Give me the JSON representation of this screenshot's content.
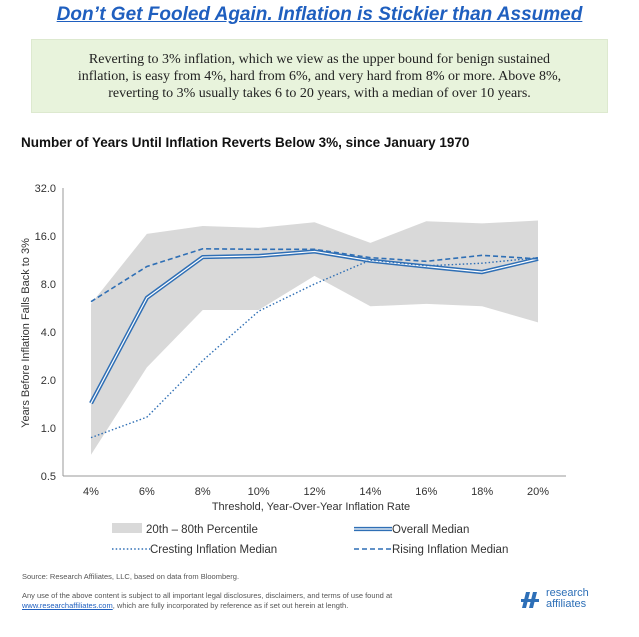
{
  "headline": "Don’t Get Fooled Again. Inflation is Stickier than Assumed",
  "callout": {
    "line1": "Reverting to 3% inflation, which we view as the upper bound for benign sustained",
    "line2": "inflation, is easy from 4%, hard from 6%, and very hard from 8% or more. Above 8%,",
    "line3": "reverting to 3% usually takes 6 to 20 years, with a median of over 10 years."
  },
  "chart_data": {
    "type": "line",
    "title": "Number of Years Until Inflation Reverts Below 3%, since January 1970",
    "xlabel": "Threshold, Year-Over-Year Inflation Rate",
    "ylabel": "Years Before Inflation Falls Back to 3%",
    "yscale": "log2",
    "ylim": [
      0.5,
      32.0
    ],
    "yticks": [
      "32.0",
      "16.0",
      "8.0",
      "4.0",
      "2.0",
      "1.0",
      "0.5"
    ],
    "categories": [
      "4%",
      "6%",
      "8%",
      "10%",
      "12%",
      "14%",
      "16%",
      "18%",
      "20%"
    ],
    "band": {
      "name": "20th – 80th Percentile",
      "lower": [
        0.68,
        2.4,
        5.5,
        5.5,
        9.0,
        5.8,
        6.0,
        5.8,
        4.6
      ],
      "upper": [
        6.0,
        16.5,
        18.5,
        18.0,
        19.5,
        14.5,
        19.8,
        19.2,
        20.0
      ]
    },
    "series": [
      {
        "name": "Overall Median",
        "values": [
          1.43,
          6.55,
          11.8,
          12.0,
          12.8,
          11.2,
          10.3,
          9.5,
          11.5
        ],
        "color": "#2f6fb5",
        "style": "double"
      },
      {
        "name": "Cresting Inflation Median",
        "values": [
          0.87,
          1.17,
          2.65,
          5.4,
          8.0,
          11.3,
          10.4,
          10.8,
          11.7
        ],
        "color": "#2f6fb5",
        "style": "dotted"
      },
      {
        "name": "Rising Inflation Median",
        "values": [
          6.2,
          10.3,
          13.3,
          13.2,
          13.2,
          11.7,
          11.1,
          12.1,
          11.5
        ],
        "color": "#2f6fb5",
        "style": "dashed"
      }
    ],
    "legend_position": "bottom",
    "band_color": "#d9d9d9",
    "grid": false
  },
  "footer": {
    "source": "Source: Research Affiliates, LLC, based on data from Bloomberg.",
    "disclaimer_line1": "Any use of the above content is subject to all important legal disclosures, disclaimers, and terms of use found at",
    "disclaimer_link": "www.researchaffiliates.com",
    "disclaimer_rest": ", which are fully incorporated by reference as if set out herein at length."
  },
  "logo": {
    "line1": "research",
    "line2": "affiliates",
    "icon": "research-affiliates-logo-icon",
    "color": "#2d6fb7"
  }
}
